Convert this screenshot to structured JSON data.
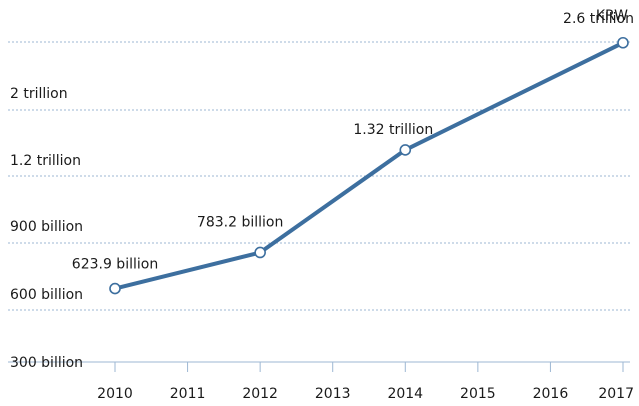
{
  "chart_data": {
    "type": "line",
    "unit_label": "KRW",
    "x": [
      "2010",
      "2012",
      "2014",
      "2017"
    ],
    "xticks": [
      "2010",
      "2011",
      "2012",
      "2013",
      "2014",
      "2015",
      "2016",
      "2017"
    ],
    "yticks": [
      {
        "value": 300,
        "label": "300 billion"
      },
      {
        "value": 600,
        "label": "600 billion"
      },
      {
        "value": 900,
        "label": "900 billion"
      },
      {
        "value": 1200,
        "label": "1.2 trillion"
      },
      {
        "value": 2000,
        "label": "2 trillion"
      }
    ],
    "series": [
      {
        "values": [
          623.9,
          783.2,
          1320,
          2600
        ],
        "labels": [
          "623.9 billion",
          "783.2 billion",
          "1.32 trillion",
          "2.6 trillion"
        ]
      }
    ],
    "grid": true,
    "colors": {
      "line": "#3d6f9f",
      "grid": "#9db7d3"
    }
  }
}
